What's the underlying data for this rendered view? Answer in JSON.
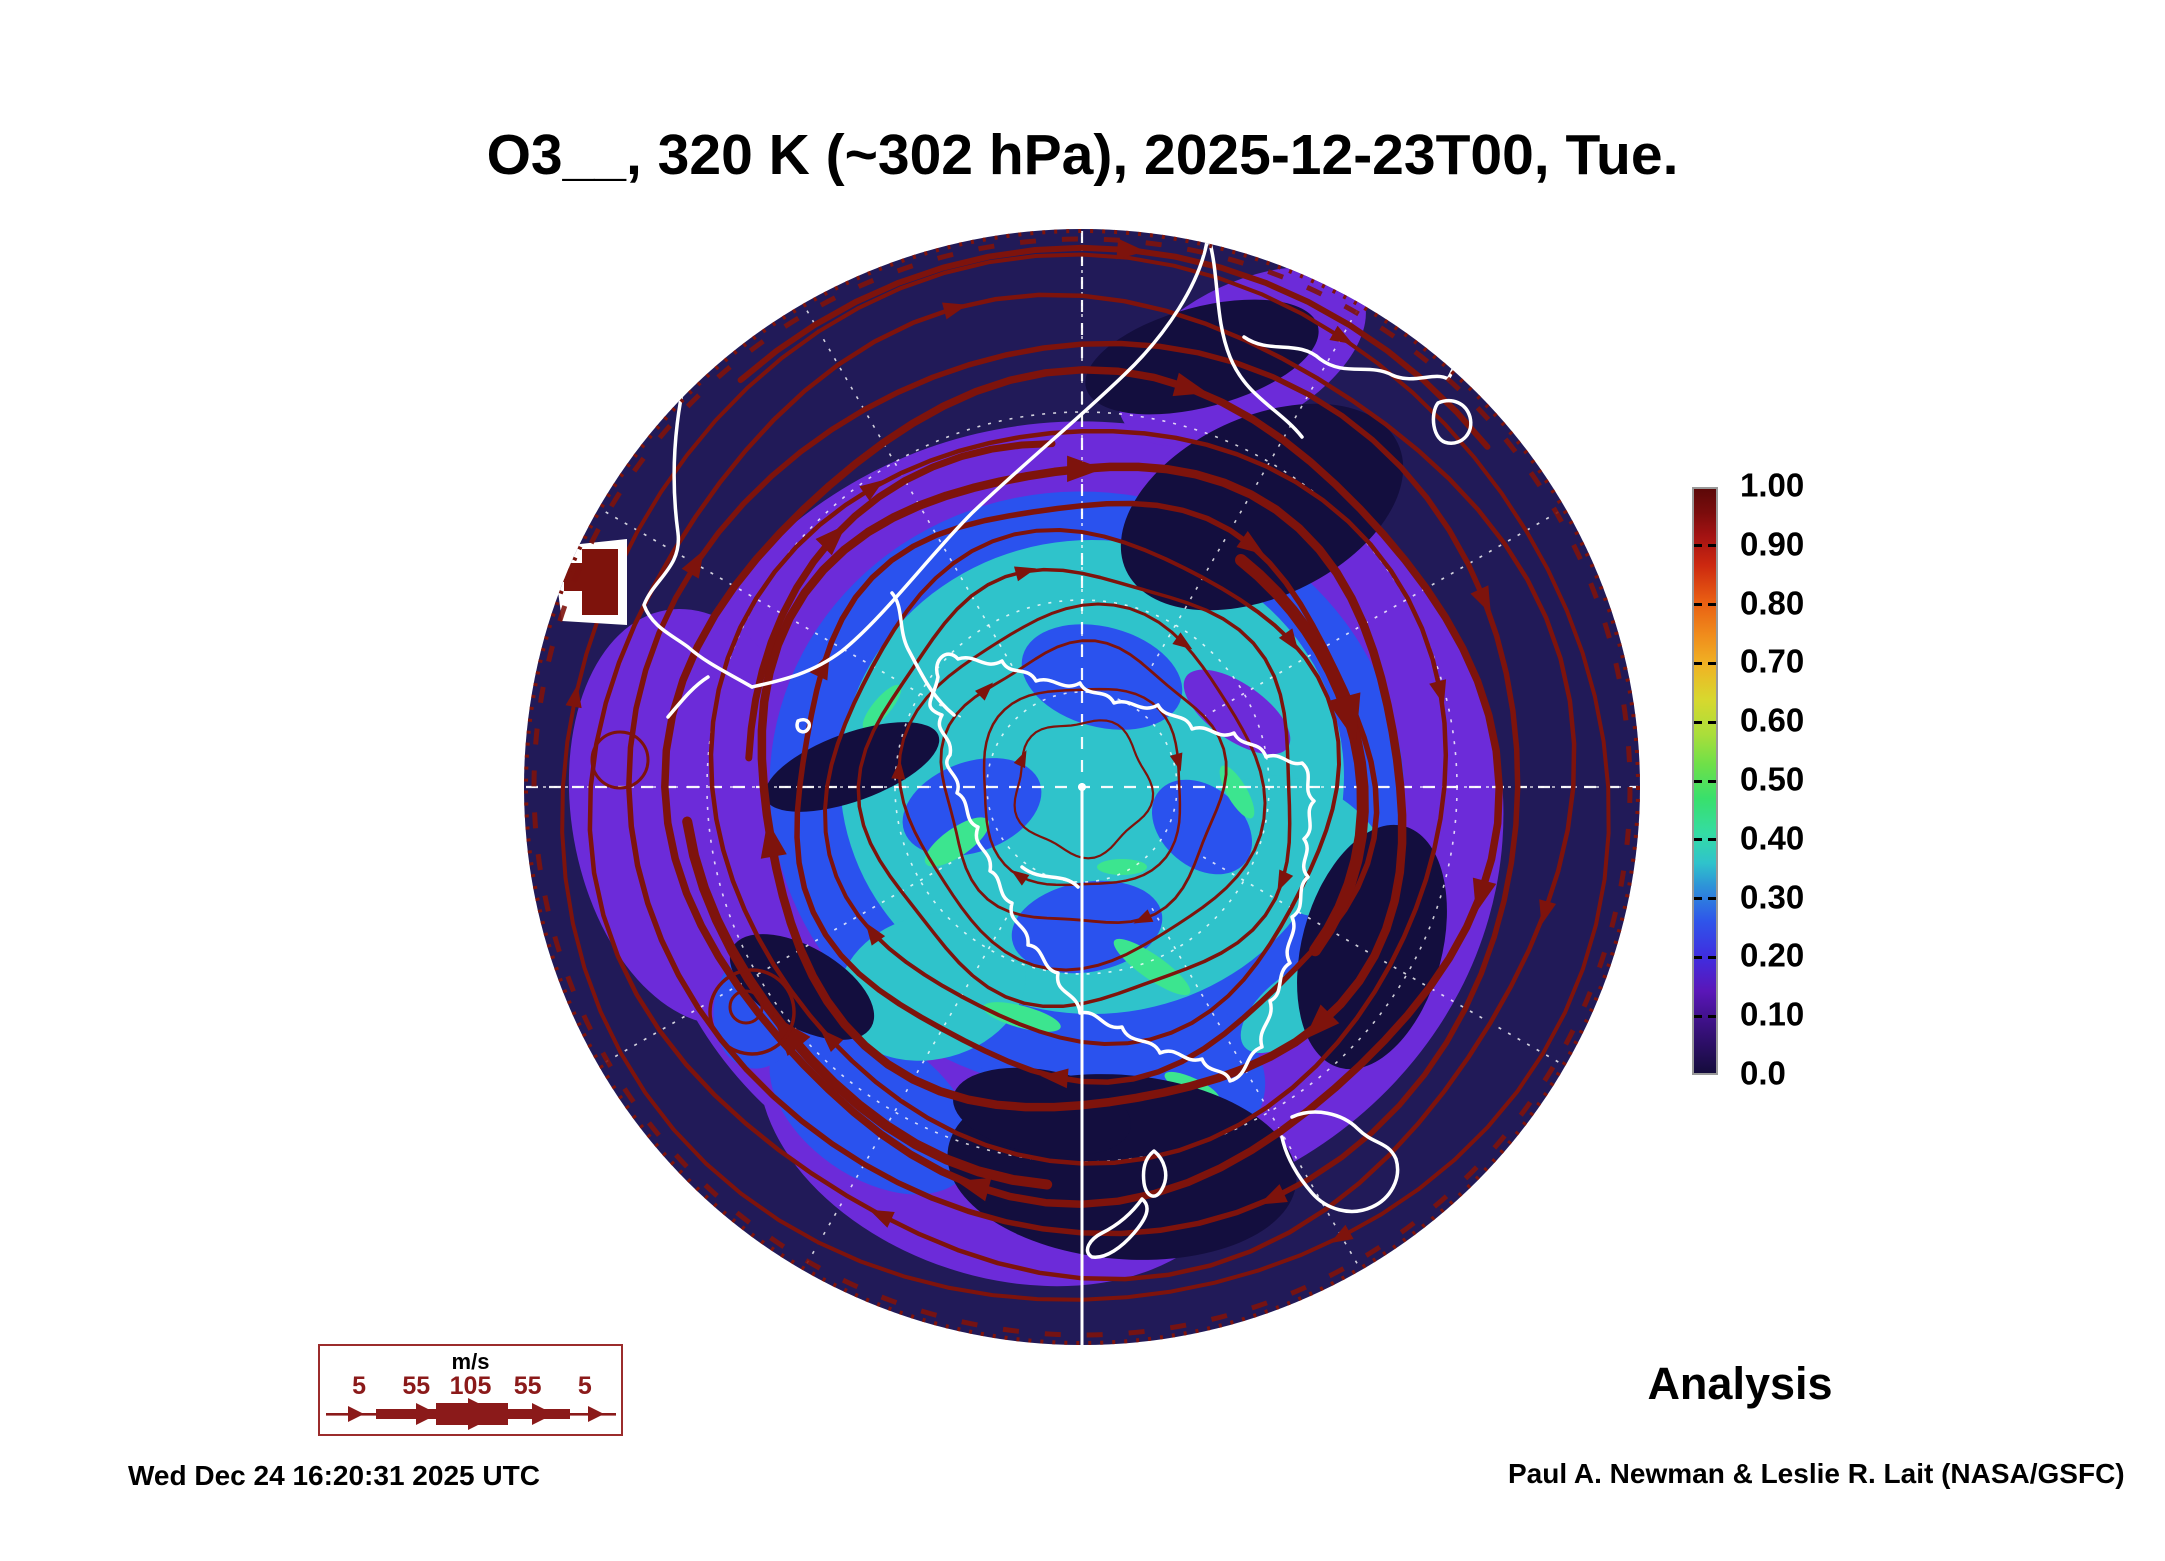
{
  "title": "O3__, 320 K (~302 hPa), 2025-12-23T00, Tue.",
  "analysis_label": "Analysis",
  "footer": {
    "timestamp": "Wed Dec 24 16:20:31 2025 UTC",
    "credit": "Paul A. Newman & Leslie R. Lait (NASA/GSFC)"
  },
  "colorbar": {
    "ticks": [
      "1.00",
      "0.90",
      "0.80",
      "0.70",
      "0.60",
      "0.50",
      "0.40",
      "0.30",
      "0.20",
      "0.10",
      "0.0"
    ],
    "range_min": 0.0,
    "range_max": 1.0
  },
  "wind_legend": {
    "units_label": "m/s",
    "speed_labels": [
      "5",
      "55",
      "105",
      "55",
      "5"
    ]
  },
  "colors": {
    "streamline": "#7e130c",
    "legend_accent": "#8b1a1a",
    "coastline": "#ffffff",
    "graticule": "#ffffff",
    "background": "#ffffff",
    "text": "#000000",
    "map_bins": {
      "0.00": "#130e3e",
      "0.05": "#211a58",
      "0.10": "#6c2bd9",
      "0.20": "#2a52ee",
      "0.30": "#2fc3cb",
      "0.40": "#3ce58f"
    }
  },
  "chart_data": {
    "type": "heatmap",
    "title": "O3__, 320 K (~302 hPa), 2025-12-23T00, Tue.",
    "projection": "south polar stereographic (Antarctica centered)",
    "field": "O3_ normalized ozone field at 320 K (~302 hPa)",
    "level": "320 K (~302 hPa)",
    "valid_time": "2025-12-23T00, Tue.",
    "colorbar": {
      "orientation": "vertical",
      "position": "right",
      "range": [
        0.0,
        1.0
      ],
      "ticks": [
        1.0,
        0.9,
        0.8,
        0.7,
        0.6,
        0.5,
        0.4,
        0.3,
        0.2,
        0.1,
        0.0
      ],
      "colors_low_to_high": [
        "#130e3e",
        "#5a16b8",
        "#2f55ea",
        "#2e93d8",
        "#2fc3cb",
        "#38e06c",
        "#aade3a",
        "#f0b224",
        "#e85c12",
        "#a31212",
        "#5c0808"
      ]
    },
    "estimated_field_values": [
      {
        "region": "map edge / subtropics (outer dark ring)",
        "value": 0.03
      },
      {
        "region": "midlatitude ring ~40-55S (purple)",
        "value": 0.12
      },
      {
        "region": "collar ~55-65S (blue)",
        "value": 0.22
      },
      {
        "region": "polar cap over Antarctica (cyan)",
        "value": 0.32
      },
      {
        "region": "filaments near Antarctic coast (green streaks)",
        "value": 0.42
      }
    ],
    "overlays": [
      "dark-red wind streamlines with arrowheads, line width scaled 5-105 m/s",
      "white coastlines: South America, Australia, Tasmania, New Zealand, Antarctica, South Africa",
      "white dashed graticule; dashed horizontal line through pole; solid white meridian below pole"
    ],
    "wind_scale_m_per_s": [
      5,
      55,
      105,
      55,
      5
    ],
    "annotations": [
      "Analysis",
      "Wed Dec 24 16:20:31 2025 UTC",
      "Paul A. Newman & Leslie R. Lait (NASA/GSFC)"
    ]
  }
}
